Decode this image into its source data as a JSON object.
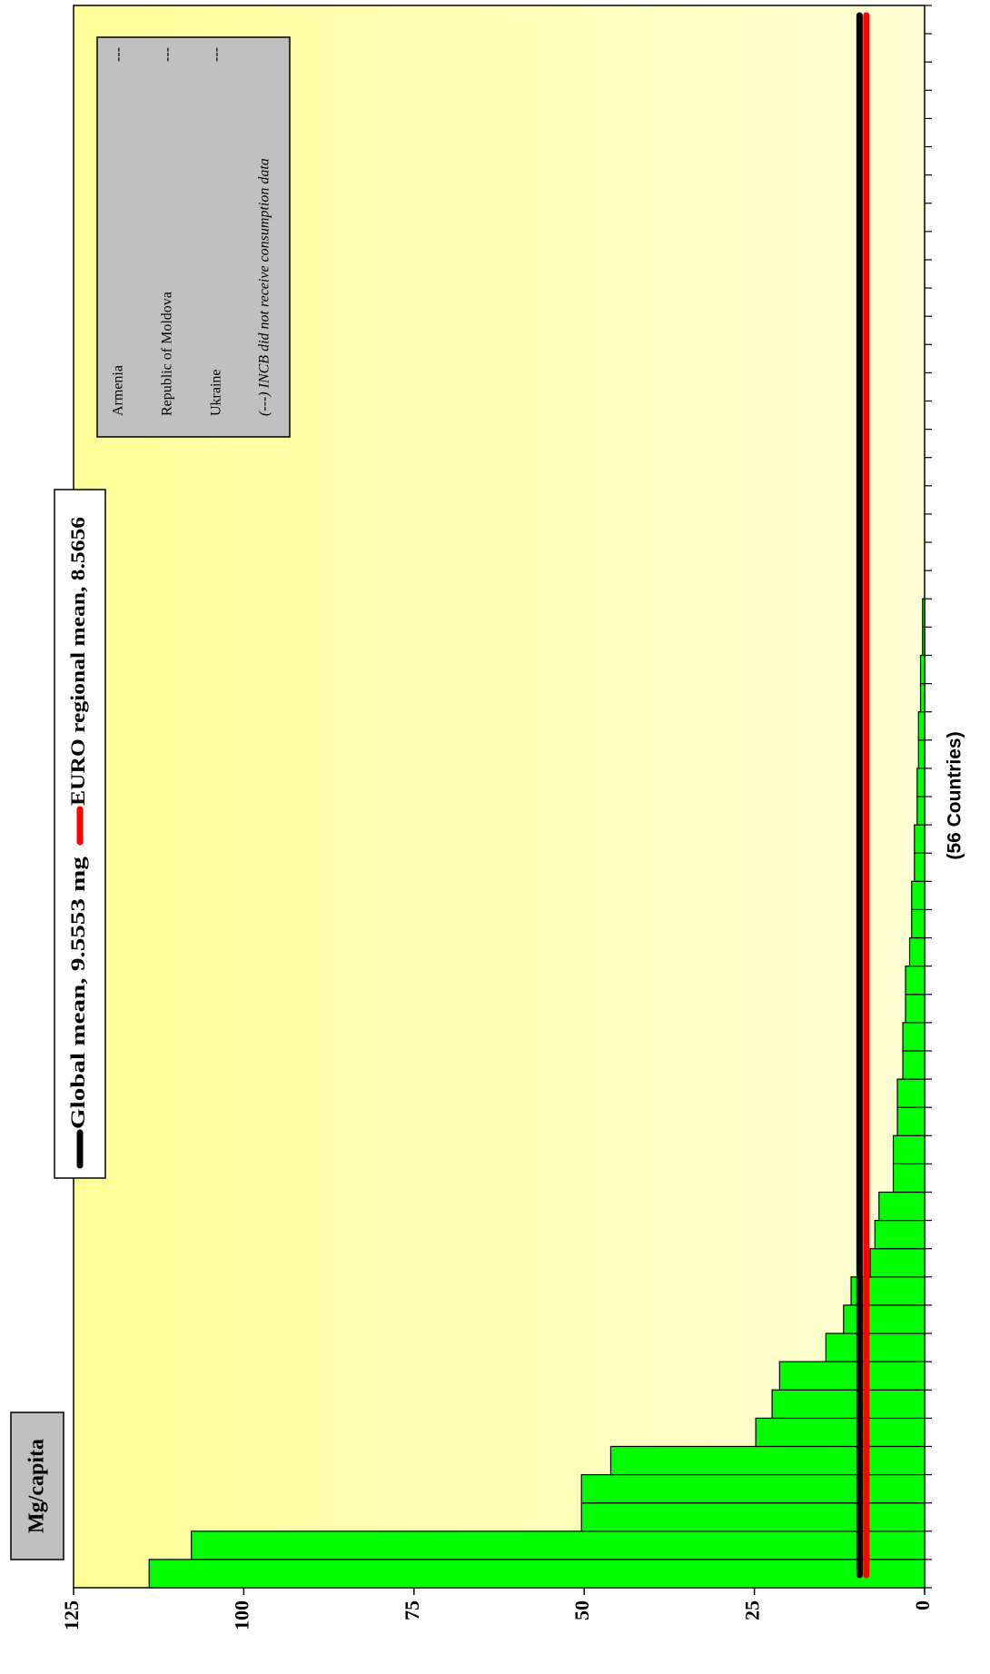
{
  "chart_data": {
    "type": "bar",
    "y_label": "Mg/capita",
    "x_label": "(56 Countries)",
    "categories": [
      null,
      null,
      null,
      null,
      null,
      null,
      null,
      null,
      null,
      null,
      null,
      null,
      null,
      null,
      null,
      null,
      null,
      null,
      null,
      null,
      null,
      null,
      null,
      null,
      null,
      null,
      null,
      null,
      null,
      null,
      null,
      null,
      null,
      null,
      null,
      null,
      null,
      null,
      null,
      null,
      null,
      null,
      null,
      null,
      null,
      null,
      null,
      null,
      null,
      null,
      null,
      null,
      null,
      null,
      null,
      null
    ],
    "values": [
      113.9,
      107.7,
      50.4,
      50.4,
      46.1,
      24.8,
      22.4,
      21.3,
      14.5,
      11.9,
      10.8,
      8.0,
      7.3,
      6.7,
      4.6,
      4.6,
      4.0,
      4.0,
      3.2,
      3.2,
      2.8,
      2.8,
      2.2,
      1.9,
      1.9,
      1.5,
      1.5,
      1.1,
      1.1,
      0.9,
      0.9,
      0.6,
      0.6,
      0.3,
      0.3,
      0,
      0,
      0,
      0,
      0,
      0,
      0,
      0,
      0,
      0,
      0,
      0,
      0,
      0,
      0,
      0,
      0,
      0,
      0,
      0,
      0
    ],
    "color": "#00ff00",
    "ylim": [
      0,
      125
    ],
    "yticks": [
      0,
      25,
      50,
      75,
      100,
      125
    ],
    "mean_lines": [
      {
        "name": "Global mean, 9.5553 mg",
        "color": "#000000",
        "value": 9.5553
      },
      {
        "name": "EURO regional mean, 8.5656",
        "color": "#ff0000",
        "value": 8.5656
      }
    ],
    "notes": {
      "rows": [
        {
          "name": "Armenia",
          "value": "---"
        },
        {
          "name": "Republic of Moldova",
          "value": "---"
        },
        {
          "name": "Ukraine",
          "value": "---"
        }
      ],
      "footnote": "(---) INCB did not receive consumption data"
    }
  }
}
